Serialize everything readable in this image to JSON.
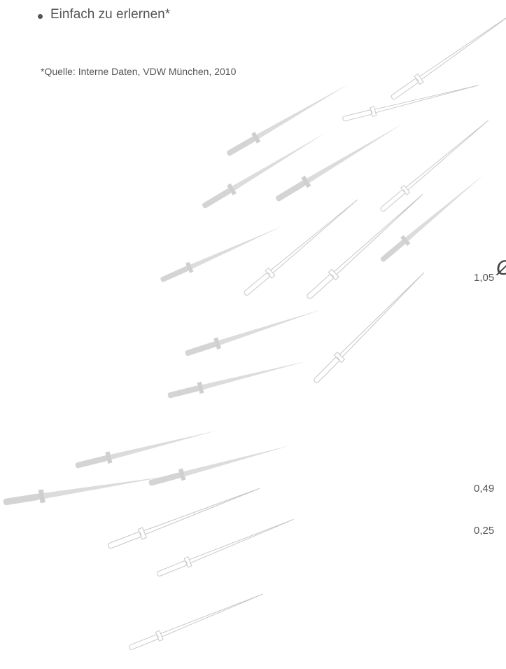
{
  "bullets": [
    "Einfach zu erlernen*"
  ],
  "footnote": "*Quelle: Interne Daten, VDW München, 2010",
  "diameter": {
    "symbol": "Ø",
    "values": [
      "1,05",
      "0,49",
      "0,25"
    ]
  }
}
